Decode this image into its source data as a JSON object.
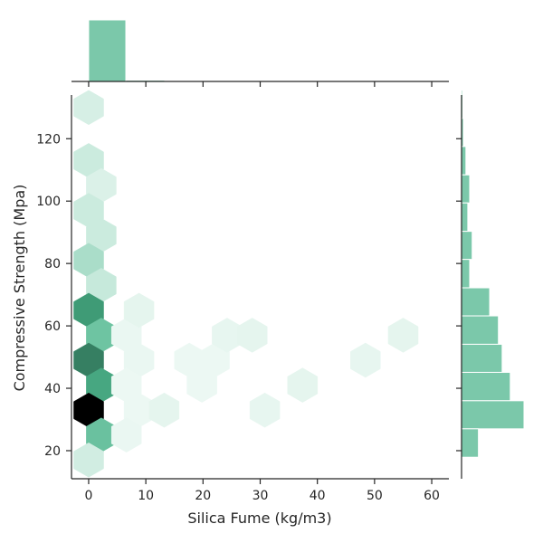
{
  "chart_data": {
    "type": "hexbin-jointplot",
    "xlabel": "Silica Fume (kg/m3)",
    "ylabel": "Compressive Strength (Mpa)",
    "xlim": [
      -3,
      63
    ],
    "ylim": [
      11,
      134
    ],
    "xticks": [
      "0",
      "10",
      "20",
      "30",
      "40",
      "50",
      "60"
    ],
    "yticks": [
      "20",
      "40",
      "60",
      "80",
      "100",
      "120"
    ],
    "colors": {
      "hist": "#7bc8aa",
      "hex_max": "#000000",
      "hex_light": "#eef8f4"
    },
    "hexbins": [
      {
        "x": 0,
        "y": 130,
        "level": 0.12
      },
      {
        "x": 0,
        "y": 113,
        "level": 0.16
      },
      {
        "x": 2.2,
        "y": 105,
        "level": 0.1
      },
      {
        "x": 0,
        "y": 97,
        "level": 0.16
      },
      {
        "x": 2.2,
        "y": 89,
        "level": 0.16
      },
      {
        "x": 0,
        "y": 81,
        "level": 0.28
      },
      {
        "x": 2.2,
        "y": 73,
        "level": 0.18
      },
      {
        "x": 0,
        "y": 65,
        "level": 0.78
      },
      {
        "x": 2.2,
        "y": 57,
        "level": 0.5
      },
      {
        "x": 0,
        "y": 49,
        "level": 0.88
      },
      {
        "x": 2.2,
        "y": 41,
        "level": 0.72
      },
      {
        "x": 0,
        "y": 33,
        "level": 1.0
      },
      {
        "x": 2.2,
        "y": 25,
        "level": 0.52
      },
      {
        "x": 0,
        "y": 17,
        "level": 0.14
      },
      {
        "x": 6.6,
        "y": 57,
        "level": 0.04
      },
      {
        "x": 8.8,
        "y": 65,
        "level": 0.06
      },
      {
        "x": 8.8,
        "y": 49,
        "level": 0.04
      },
      {
        "x": 6.6,
        "y": 41,
        "level": 0.03
      },
      {
        "x": 8.8,
        "y": 33,
        "level": 0.03
      },
      {
        "x": 6.6,
        "y": 25,
        "level": 0.04
      },
      {
        "x": 13.2,
        "y": 33,
        "level": 0.06
      },
      {
        "x": 17.6,
        "y": 49,
        "level": 0.03
      },
      {
        "x": 19.8,
        "y": 41,
        "level": 0.03
      },
      {
        "x": 22.0,
        "y": 49,
        "level": 0.03
      },
      {
        "x": 24.2,
        "y": 57,
        "level": 0.05
      },
      {
        "x": 28.6,
        "y": 57,
        "level": 0.06
      },
      {
        "x": 30.8,
        "y": 33,
        "level": 0.05
      },
      {
        "x": 37.4,
        "y": 41,
        "level": 0.06
      },
      {
        "x": 48.4,
        "y": 49,
        "level": 0.05
      },
      {
        "x": 55.0,
        "y": 57,
        "level": 0.06
      }
    ],
    "x_hist": [
      {
        "x0": 0,
        "x1": 6.5,
        "level": 1.0
      },
      {
        "x0": 6.5,
        "x1": 13.3,
        "level": 0.02
      }
    ],
    "y_hist": [
      {
        "y0": 126.5,
        "y1": 135.6,
        "level": 0.02
      },
      {
        "y0": 117.5,
        "y1": 126.5,
        "level": 0.03
      },
      {
        "y0": 108.4,
        "y1": 117.5,
        "level": 0.07
      },
      {
        "y0": 99.4,
        "y1": 108.4,
        "level": 0.13
      },
      {
        "y0": 90.3,
        "y1": 99.4,
        "level": 0.1
      },
      {
        "y0": 81.3,
        "y1": 90.3,
        "level": 0.17
      },
      {
        "y0": 72.2,
        "y1": 81.3,
        "level": 0.13
      },
      {
        "y0": 63.2,
        "y1": 72.2,
        "level": 0.45
      },
      {
        "y0": 54.1,
        "y1": 63.2,
        "level": 0.59
      },
      {
        "y0": 45.1,
        "y1": 54.1,
        "level": 0.65
      },
      {
        "y0": 36.0,
        "y1": 45.1,
        "level": 0.78
      },
      {
        "y0": 27.0,
        "y1": 36.0,
        "level": 1.0
      },
      {
        "y0": 17.9,
        "y1": 27.0,
        "level": 0.27
      }
    ]
  }
}
